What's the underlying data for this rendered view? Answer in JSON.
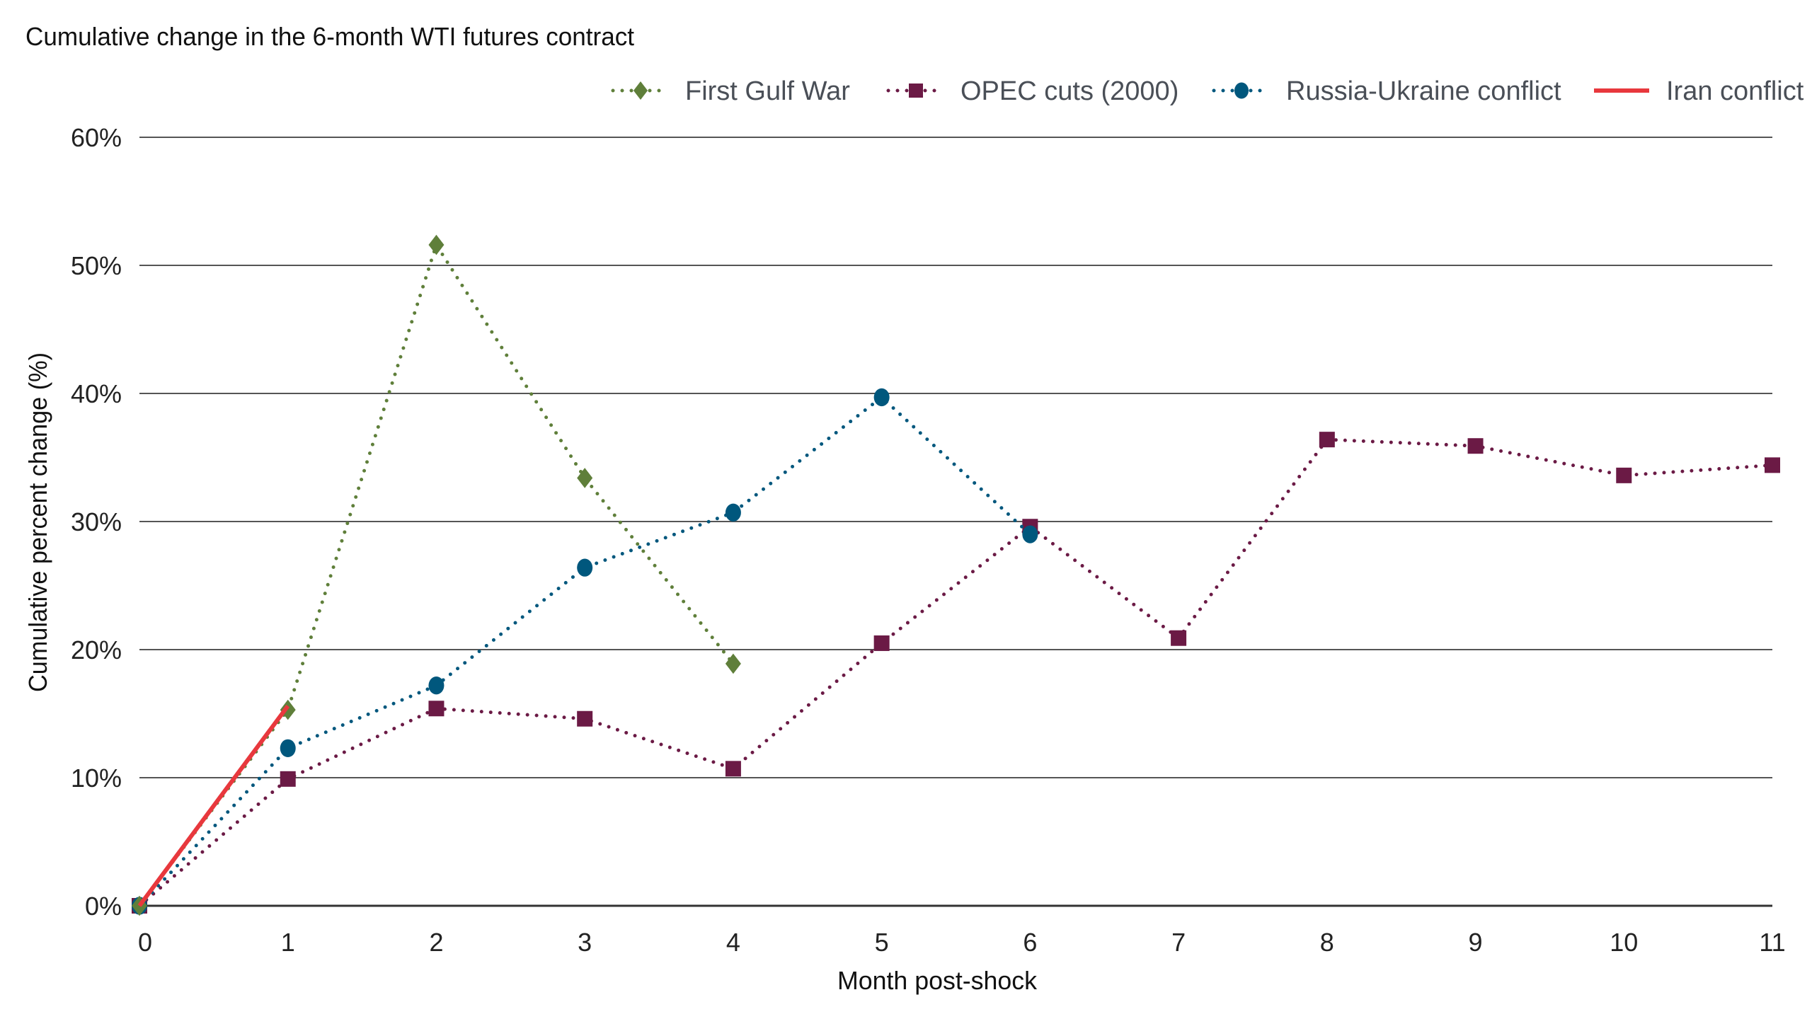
{
  "chart_data": {
    "type": "line",
    "title": "Cumulative change in the 6-month WTI futures contract",
    "xlabel": "Month post-shock",
    "ylabel": "Cumulative percent change (%)",
    "x": [
      0,
      1,
      2,
      3,
      4,
      5,
      6,
      7,
      8,
      9,
      10,
      11
    ],
    "x_tick_labels": [
      "0",
      "1",
      "2",
      "3",
      "4",
      "5",
      "6",
      "7",
      "8",
      "9",
      "10",
      "11"
    ],
    "y_ticks": [
      0,
      10,
      20,
      30,
      40,
      50,
      60
    ],
    "y_tick_labels": [
      "0%",
      "10%",
      "20%",
      "30%",
      "40%",
      "50%",
      "60%"
    ],
    "xlim": [
      0,
      11
    ],
    "ylim": [
      0,
      60
    ],
    "grid": "horizontal",
    "legend_placement": "top-right",
    "series": [
      {
        "name": "First Gulf War",
        "color": "#5f7f3a",
        "style": "dotted",
        "marker": "diamond",
        "x": [
          0,
          1,
          2,
          3,
          4
        ],
        "values": [
          0,
          15.3,
          51.6,
          33.4,
          18.9
        ]
      },
      {
        "name": "OPEC cuts (2000)",
        "color": "#6b1a45",
        "style": "dotted",
        "marker": "square",
        "x": [
          0,
          1,
          2,
          3,
          4,
          5,
          6,
          7,
          8,
          9,
          10,
          11
        ],
        "values": [
          0,
          9.9,
          15.4,
          14.6,
          10.7,
          20.5,
          29.6,
          20.9,
          36.4,
          35.9,
          33.6,
          34.4
        ]
      },
      {
        "name": "Russia-Ukraine conflict",
        "color": "#00577d",
        "style": "dotted",
        "marker": "circle",
        "x": [
          0,
          1,
          2,
          3,
          4,
          5,
          6
        ],
        "values": [
          0,
          12.3,
          17.2,
          26.4,
          30.7,
          39.7,
          29.0
        ]
      },
      {
        "name": "Iran conflict",
        "color": "#e8383d",
        "style": "solid",
        "marker": "none",
        "x": [
          0,
          1
        ],
        "values": [
          0,
          15.6
        ]
      }
    ]
  }
}
